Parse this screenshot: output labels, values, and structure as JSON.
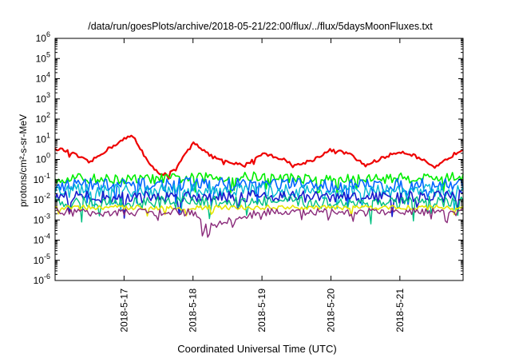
{
  "chart_data": {
    "type": "line",
    "title": "/data/run/goesPlots/archive/2018-05-21/22:00/flux/../flux/5daysMoonFluxes.txt",
    "xlabel": "Coordinated Universal Time (UTC)",
    "ylabel": "protons/cm²-s-sr-MeV",
    "yscale": "log",
    "ylim": [
      1e-06,
      1000000.0
    ],
    "xlim": [
      "2018-05-16T00:00",
      "2018-05-21T22:00"
    ],
    "grid": false,
    "legend": "none",
    "y_ticks": [
      {
        "exp": "-6",
        "value": 1e-06
      },
      {
        "exp": "-5",
        "value": 1e-05
      },
      {
        "exp": "-4",
        "value": 0.0001
      },
      {
        "exp": "-3",
        "value": 0.001
      },
      {
        "exp": "-2",
        "value": 0.01
      },
      {
        "exp": "-1",
        "value": 0.1
      },
      {
        "exp": "0",
        "value": 1
      },
      {
        "exp": "1",
        "value": 10
      },
      {
        "exp": "2",
        "value": 100
      },
      {
        "exp": "3",
        "value": 1000
      },
      {
        "exp": "4",
        "value": 10000
      },
      {
        "exp": "5",
        "value": 100000
      },
      {
        "exp": "6",
        "value": 1000000
      }
    ],
    "x_ticks": [
      {
        "label": "2018-5-17",
        "date": "2018-05-17T00:00"
      },
      {
        "label": "2018-5-18",
        "date": "2018-05-18T00:00"
      },
      {
        "label": "2018-5-19",
        "date": "2018-05-19T00:00"
      },
      {
        "label": "2018-5-20",
        "date": "2018-05-20T00:00"
      },
      {
        "label": "2018-5-21",
        "date": "2018-05-21T00:00"
      }
    ],
    "series": [
      {
        "color": "#ee0000",
        "width": 2.2,
        "noise": 0.08,
        "x": [
          "2018-05-16T00:00",
          "2018-05-16T06:00",
          "2018-05-16T12:00",
          "2018-05-16T18:00",
          "2018-05-17T00:00",
          "2018-05-17T03:00",
          "2018-05-17T06:00",
          "2018-05-17T09:00",
          "2018-05-17T12:00",
          "2018-05-17T15:00",
          "2018-05-17T18:00",
          "2018-05-18T00:00",
          "2018-05-18T06:00",
          "2018-05-18T12:00",
          "2018-05-18T18:00",
          "2018-05-19T00:00",
          "2018-05-19T06:00",
          "2018-05-19T12:00",
          "2018-05-19T18:00",
          "2018-05-20T00:00",
          "2018-05-20T06:00",
          "2018-05-20T12:00",
          "2018-05-20T18:00",
          "2018-05-21T00:00",
          "2018-05-21T06:00",
          "2018-05-21T12:00",
          "2018-05-21T18:00",
          "2018-05-21T22:00"
        ],
        "values": [
          4,
          2,
          0.7,
          3,
          10,
          15,
          3,
          0.5,
          0.22,
          0.18,
          0.3,
          8,
          1.5,
          0.7,
          0.5,
          2,
          1.2,
          0.5,
          1,
          3,
          2,
          0.5,
          1.2,
          2.5,
          1.5,
          0.35,
          1.5,
          3.5
        ]
      },
      {
        "color": "#00ee00",
        "width": 1.6,
        "noise": 0.25,
        "x": [
          "2018-05-16T00:00",
          "2018-05-17T00:00",
          "2018-05-18T00:00",
          "2018-05-19T00:00",
          "2018-05-20T00:00",
          "2018-05-21T00:00",
          "2018-05-21T22:00"
        ],
        "values": [
          0.12,
          0.1,
          0.12,
          0.14,
          0.1,
          0.12,
          0.13
        ]
      },
      {
        "color": "#0066ff",
        "width": 1.6,
        "noise": 0.35,
        "x": [
          "2018-05-16T00:00",
          "2018-05-17T00:00",
          "2018-05-18T00:00",
          "2018-05-19T00:00",
          "2018-05-20T00:00",
          "2018-05-21T00:00",
          "2018-05-21T22:00"
        ],
        "values": [
          0.06,
          0.05,
          0.06,
          0.06,
          0.05,
          0.05,
          0.06
        ]
      },
      {
        "color": "#00b8d4",
        "width": 1.4,
        "noise": 0.35,
        "x": [
          "2018-05-16T00:00",
          "2018-05-17T00:00",
          "2018-05-18T00:00",
          "2018-05-19T00:00",
          "2018-05-20T00:00",
          "2018-05-21T00:00",
          "2018-05-21T22:00"
        ],
        "values": [
          0.03,
          0.025,
          0.03,
          0.03,
          0.025,
          0.025,
          0.03
        ]
      },
      {
        "color": "#1a1acc",
        "width": 1.6,
        "noise": 0.3,
        "x": [
          "2018-05-16T00:00",
          "2018-05-17T00:00",
          "2018-05-18T00:00",
          "2018-05-19T00:00",
          "2018-05-20T00:00",
          "2018-05-21T00:00",
          "2018-05-21T22:00"
        ],
        "values": [
          0.015,
          0.013,
          0.015,
          0.016,
          0.013,
          0.013,
          0.015
        ]
      },
      {
        "color": "#00c080",
        "width": 1.4,
        "noise": 0.3,
        "x": [
          "2018-05-16T00:00",
          "2018-05-17T00:00",
          "2018-05-18T00:00",
          "2018-05-19T00:00",
          "2018-05-20T00:00",
          "2018-05-21T00:00",
          "2018-05-21T22:00"
        ],
        "values": [
          0.008,
          0.007,
          0.008,
          0.008,
          0.007,
          0.007,
          0.008
        ]
      },
      {
        "color": "#e6e600",
        "width": 1.6,
        "noise": 0.12,
        "x": [
          "2018-05-16T00:00",
          "2018-05-17T00:00",
          "2018-05-18T00:00",
          "2018-05-19T00:00",
          "2018-05-20T00:00",
          "2018-05-21T00:00",
          "2018-05-21T22:00"
        ],
        "values": [
          0.004,
          0.0042,
          0.004,
          0.0042,
          0.004,
          0.0042,
          0.0042
        ]
      },
      {
        "color": "#8a2a7a",
        "width": 1.4,
        "noise": 0.2,
        "x": [
          "2018-05-16T00:00",
          "2018-05-17T00:00",
          "2018-05-18T00:00",
          "2018-05-18T04:00",
          "2018-05-19T00:00",
          "2018-05-20T00:00",
          "2018-05-21T00:00",
          "2018-05-21T22:00"
        ],
        "values": [
          0.0025,
          0.0023,
          0.0024,
          0.0004,
          0.0025,
          0.0023,
          0.0025,
          0.0024
        ]
      }
    ]
  }
}
